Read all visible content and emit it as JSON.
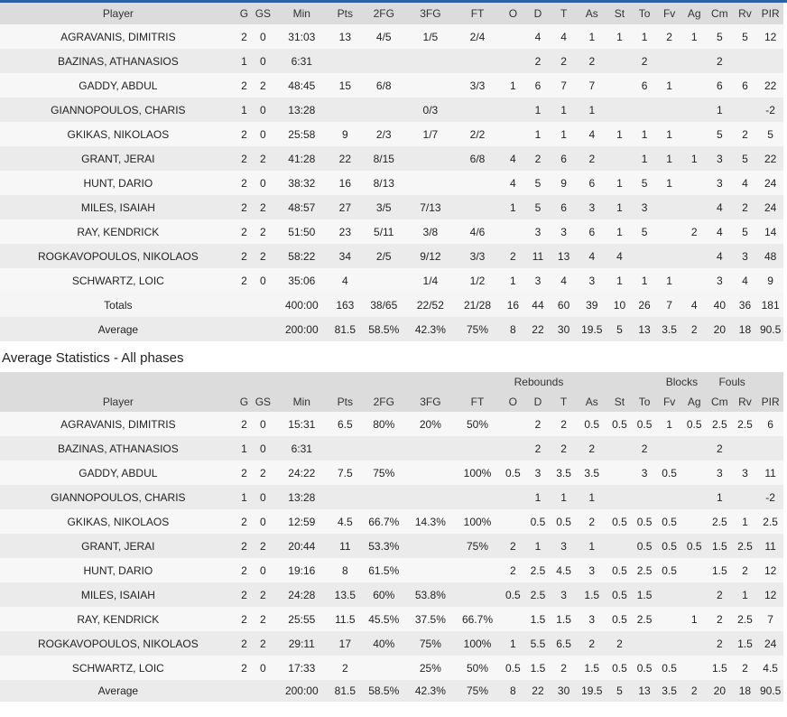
{
  "columns": [
    "Player",
    "G",
    "GS",
    "Min",
    "Pts",
    "2FG",
    "3FG",
    "FT",
    "O",
    "D",
    "T",
    "As",
    "St",
    "To",
    "Fv",
    "Ag",
    "Cm",
    "Rv",
    "PIR"
  ],
  "section_title": "Average Statistics - All phases",
  "groups": {
    "rebounds": "Rebounds",
    "blocks": "Blocks",
    "fouls": "Fouls"
  },
  "totals_table": {
    "rows": [
      [
        "AGRAVANIS, DIMITRIS",
        "2",
        "0",
        "31:03",
        "13",
        "4/5",
        "1/5",
        "2/4",
        "",
        "4",
        "4",
        "1",
        "1",
        "1",
        "2",
        "1",
        "5",
        "5",
        "12"
      ],
      [
        "BAZINAS, ATHANASIOS",
        "1",
        "0",
        "6:31",
        "",
        "",
        "",
        "",
        "",
        "2",
        "2",
        "2",
        "",
        "2",
        "",
        "",
        "2",
        "",
        ""
      ],
      [
        "GADDY, ABDUL",
        "2",
        "2",
        "48:45",
        "15",
        "6/8",
        "",
        "3/3",
        "1",
        "6",
        "7",
        "7",
        "",
        "6",
        "1",
        "",
        "6",
        "6",
        "22"
      ],
      [
        "GIANNOPOULOS, CHARIS",
        "1",
        "0",
        "13:28",
        "",
        "",
        "0/3",
        "",
        "",
        "1",
        "1",
        "1",
        "",
        "",
        "",
        "",
        "1",
        "",
        "-2"
      ],
      [
        "GKIKAS, NIKOLAOS",
        "2",
        "0",
        "25:58",
        "9",
        "2/3",
        "1/7",
        "2/2",
        "",
        "1",
        "1",
        "4",
        "1",
        "1",
        "1",
        "",
        "5",
        "2",
        "5"
      ],
      [
        "GRANT, JERAI",
        "2",
        "2",
        "41:28",
        "22",
        "8/15",
        "",
        "6/8",
        "4",
        "2",
        "6",
        "2",
        "",
        "1",
        "1",
        "1",
        "3",
        "5",
        "22"
      ],
      [
        "HUNT, DARIO",
        "2",
        "0",
        "38:32",
        "16",
        "8/13",
        "",
        "",
        "4",
        "5",
        "9",
        "6",
        "1",
        "5",
        "1",
        "",
        "3",
        "4",
        "24"
      ],
      [
        "MILES, ISAIAH",
        "2",
        "2",
        "48:57",
        "27",
        "3/5",
        "7/13",
        "",
        "1",
        "5",
        "6",
        "3",
        "1",
        "3",
        "",
        "",
        "4",
        "2",
        "24"
      ],
      [
        "RAY, KENDRICK",
        "2",
        "2",
        "51:50",
        "23",
        "5/11",
        "3/8",
        "4/6",
        "",
        "3",
        "3",
        "6",
        "1",
        "5",
        "",
        "2",
        "4",
        "5",
        "14"
      ],
      [
        "ROGKAVOPOULOS, NIKOLAOS",
        "2",
        "2",
        "58:22",
        "34",
        "2/5",
        "9/12",
        "3/3",
        "2",
        "11",
        "13",
        "4",
        "4",
        "",
        "",
        "",
        "4",
        "3",
        "48"
      ],
      [
        "SCHWARTZ, LOIC",
        "2",
        "0",
        "35:06",
        "4",
        "",
        "1/4",
        "1/2",
        "1",
        "3",
        "4",
        "3",
        "1",
        "1",
        "1",
        "",
        "3",
        "4",
        "9"
      ]
    ],
    "totals": [
      "Totals",
      "",
      "",
      "400:00",
      "163",
      "38/65",
      "22/52",
      "21/28",
      "16",
      "44",
      "60",
      "39",
      "10",
      "26",
      "7",
      "4",
      "40",
      "36",
      "181"
    ],
    "average": [
      "Average",
      "",
      "",
      "200:00",
      "81.5",
      "58.5%",
      "42.3%",
      "75%",
      "8",
      "22",
      "30",
      "19.5",
      "5",
      "13",
      "3.5",
      "2",
      "20",
      "18",
      "90.5"
    ]
  },
  "average_table": {
    "rows": [
      [
        "AGRAVANIS, DIMITRIS",
        "2",
        "0",
        "15:31",
        "6.5",
        "80%",
        "20%",
        "50%",
        "",
        "2",
        "2",
        "0.5",
        "0.5",
        "0.5",
        "1",
        "0.5",
        "2.5",
        "2.5",
        "6"
      ],
      [
        "BAZINAS, ATHANASIOS",
        "1",
        "0",
        "6:31",
        "",
        "",
        "",
        "",
        "",
        "2",
        "2",
        "2",
        "",
        "2",
        "",
        "",
        "2",
        "",
        ""
      ],
      [
        "GADDY, ABDUL",
        "2",
        "2",
        "24:22",
        "7.5",
        "75%",
        "",
        "100%",
        "0.5",
        "3",
        "3.5",
        "3.5",
        "",
        "3",
        "0.5",
        "",
        "3",
        "3",
        "11"
      ],
      [
        "GIANNOPOULOS, CHARIS",
        "1",
        "0",
        "13:28",
        "",
        "",
        "",
        "",
        "",
        "1",
        "1",
        "1",
        "",
        "",
        "",
        "",
        "1",
        "",
        "-2"
      ],
      [
        "GKIKAS, NIKOLAOS",
        "2",
        "0",
        "12:59",
        "4.5",
        "66.7%",
        "14.3%",
        "100%",
        "",
        "0.5",
        "0.5",
        "2",
        "0.5",
        "0.5",
        "0.5",
        "",
        "2.5",
        "1",
        "2.5"
      ],
      [
        "GRANT, JERAI",
        "2",
        "2",
        "20:44",
        "11",
        "53.3%",
        "",
        "75%",
        "2",
        "1",
        "3",
        "1",
        "",
        "0.5",
        "0.5",
        "0.5",
        "1.5",
        "2.5",
        "11"
      ],
      [
        "HUNT, DARIO",
        "2",
        "0",
        "19:16",
        "8",
        "61.5%",
        "",
        "",
        "2",
        "2.5",
        "4.5",
        "3",
        "0.5",
        "2.5",
        "0.5",
        "",
        "1.5",
        "2",
        "12"
      ],
      [
        "MILES, ISAIAH",
        "2",
        "2",
        "24:28",
        "13.5",
        "60%",
        "53.8%",
        "",
        "0.5",
        "2.5",
        "3",
        "1.5",
        "0.5",
        "1.5",
        "",
        "",
        "2",
        "1",
        "12"
      ],
      [
        "RAY, KENDRICK",
        "2",
        "2",
        "25:55",
        "11.5",
        "45.5%",
        "37.5%",
        "66.7%",
        "",
        "1.5",
        "1.5",
        "3",
        "0.5",
        "2.5",
        "",
        "1",
        "2",
        "2.5",
        "7"
      ],
      [
        "ROGKAVOPOULOS, NIKOLAOS",
        "2",
        "2",
        "29:11",
        "17",
        "40%",
        "75%",
        "100%",
        "1",
        "5.5",
        "6.5",
        "2",
        "2",
        "",
        "",
        "",
        "2",
        "1.5",
        "24"
      ],
      [
        "SCHWARTZ, LOIC",
        "2",
        "0",
        "17:33",
        "2",
        "",
        "25%",
        "50%",
        "0.5",
        "1.5",
        "2",
        "1.5",
        "0.5",
        "0.5",
        "0.5",
        "",
        "1.5",
        "2",
        "4.5"
      ]
    ],
    "average": [
      "Average",
      "",
      "",
      "200:00",
      "81.5",
      "58.5%",
      "42.3%",
      "75%",
      "8",
      "22",
      "30",
      "19.5",
      "5",
      "13",
      "3.5",
      "2",
      "20",
      "18",
      "90.5"
    ]
  }
}
